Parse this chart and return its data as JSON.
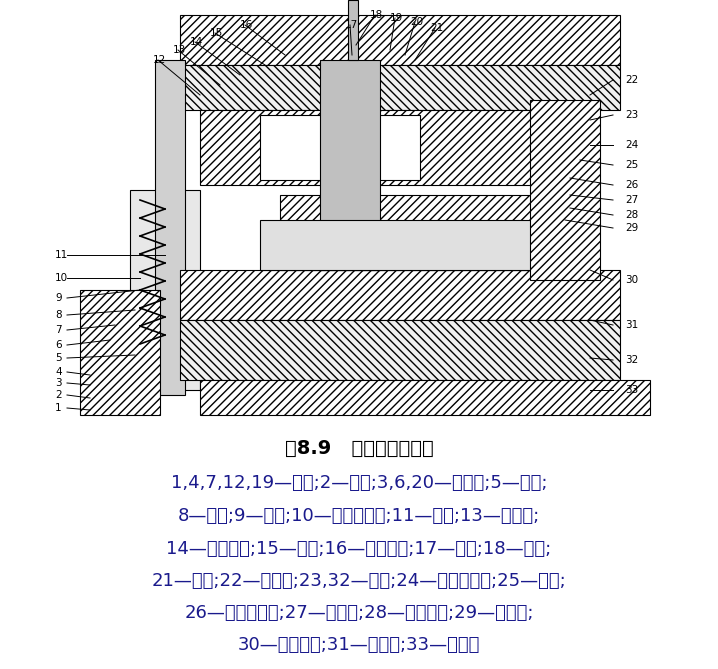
{
  "title": "图8.9   磁极复合冲裁模",
  "lines": [
    "1,4,7,12,19—螺钉;2—垫圈;3,6,20—圆柱销;5—衬套;",
    "8—导柱;9—弹簧;10—钢球保持圈;11—导套;13—推件块;",
    "14—冲孔凸模;15—推板;16—连接推杆;17—打杆;18—模柄;",
    "21—衬套;22—上模座;23,32—垫板;24—凸模固定板;25—凹模;",
    "26—凸凹模镶件;27—卸料板;28—弹簧挡圈;29—凸凹模;",
    "30—卸料螺钉;31—固定板;33—下模座"
  ],
  "bg_color": "#ffffff",
  "title_fontsize": 14,
  "text_fontsize": 13,
  "title_color": "#000000",
  "text_color": "#1a1a8c",
  "diagram_placeholder": true,
  "label_numbers_left": [
    "1",
    "2",
    "3",
    "4",
    "5",
    "6",
    "7",
    "8",
    "9",
    "10",
    "11"
  ],
  "label_numbers_top": [
    "12",
    "13",
    "14",
    "15",
    "16",
    "17",
    "18",
    "19",
    "20",
    "21"
  ],
  "label_numbers_right": [
    "22",
    "23",
    "24",
    "25",
    "26",
    "27",
    "28",
    "29",
    "30",
    "31",
    "32",
    "33"
  ],
  "figsize": [
    7.18,
    6.69
  ],
  "dpi": 100
}
